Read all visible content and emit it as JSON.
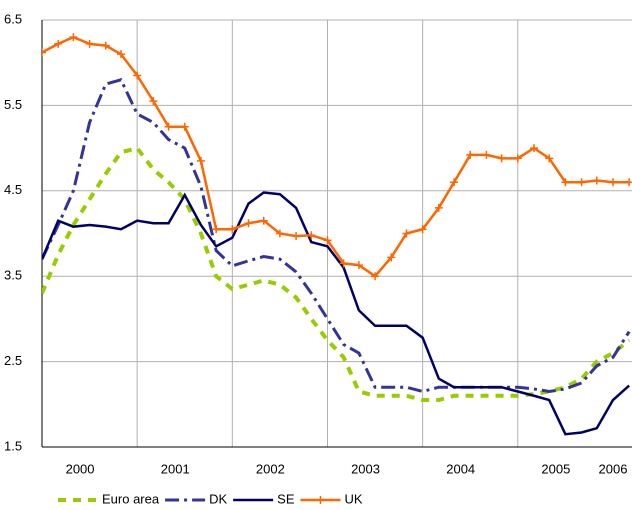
{
  "chart_data": {
    "type": "line",
    "x": [
      2000,
      2000.17,
      2000.33,
      2000.5,
      2000.67,
      2000.83,
      2001,
      2001.17,
      2001.33,
      2001.5,
      2001.67,
      2001.83,
      2002,
      2002.17,
      2002.33,
      2002.5,
      2002.67,
      2002.83,
      2003,
      2003.17,
      2003.33,
      2003.5,
      2003.67,
      2003.83,
      2004,
      2004.17,
      2004.33,
      2004.5,
      2004.67,
      2004.83,
      2005,
      2005.17,
      2005.33,
      2005.5,
      2005.67,
      2005.83,
      2006,
      2006.17
    ],
    "series": [
      {
        "name": "Euro area",
        "color": "#99cc00",
        "dash": "8 7",
        "width": 4,
        "values": [
          3.3,
          3.75,
          4.1,
          4.4,
          4.7,
          4.95,
          5.0,
          4.75,
          4.6,
          4.4,
          4.0,
          3.5,
          3.35,
          3.4,
          3.45,
          3.4,
          3.25,
          3.0,
          2.75,
          2.55,
          2.15,
          2.1,
          2.1,
          2.1,
          2.05,
          2.05,
          2.1,
          2.1,
          2.1,
          2.1,
          2.1,
          2.12,
          2.15,
          2.2,
          2.3,
          2.5,
          2.6,
          2.75
        ]
      },
      {
        "name": "DK",
        "color": "#333399",
        "dash": "14 5 3 5",
        "width": 3,
        "values": [
          3.7,
          4.1,
          4.5,
          5.3,
          5.75,
          5.8,
          5.4,
          5.3,
          5.1,
          5.0,
          4.55,
          3.8,
          3.62,
          3.68,
          3.73,
          3.7,
          3.55,
          3.3,
          3.0,
          2.7,
          2.6,
          2.2,
          2.2,
          2.2,
          2.15,
          2.2,
          2.2,
          2.2,
          2.2,
          2.2,
          2.2,
          2.18,
          2.15,
          2.18,
          2.25,
          2.45,
          2.55,
          2.85
        ]
      },
      {
        "name": "SE",
        "color": "#000066",
        "width": 2.5,
        "values": [
          3.7,
          4.15,
          4.08,
          4.1,
          4.08,
          4.05,
          4.15,
          4.12,
          4.12,
          4.45,
          4.1,
          3.85,
          3.95,
          4.35,
          4.48,
          4.46,
          4.3,
          3.9,
          3.85,
          3.6,
          3.1,
          2.92,
          2.92,
          2.92,
          2.78,
          2.3,
          2.2,
          2.2,
          2.2,
          2.2,
          2.15,
          2.1,
          2.05,
          1.65,
          1.67,
          1.72,
          2.05,
          2.22
        ]
      },
      {
        "name": "UK",
        "color": "#ff6600",
        "width": 2.5,
        "marker": "plus",
        "values": [
          6.12,
          6.22,
          6.3,
          6.22,
          6.2,
          6.1,
          5.85,
          5.55,
          5.25,
          5.25,
          4.85,
          4.05,
          4.05,
          4.12,
          4.15,
          4.0,
          3.97,
          3.98,
          3.92,
          3.65,
          3.63,
          3.5,
          3.72,
          4.0,
          4.05,
          4.3,
          4.6,
          4.92,
          4.92,
          4.88,
          4.88,
          5.0,
          4.88,
          4.6,
          4.6,
          4.62,
          4.6,
          4.6
        ]
      }
    ],
    "xlim": [
      2000,
      2006.2
    ],
    "xticks": [
      {
        "value": 2000.4,
        "label": "2000"
      },
      {
        "value": 2001.4,
        "label": "2001"
      },
      {
        "value": 2002.4,
        "label": "2002"
      },
      {
        "value": 2003.4,
        "label": "2003"
      },
      {
        "value": 2004.4,
        "label": "2004"
      },
      {
        "value": 2005.4,
        "label": "2005"
      },
      {
        "value": 2006.0,
        "label": "2006"
      }
    ],
    "xgrid": [
      2001,
      2002,
      2003,
      2004,
      2005
    ],
    "ylim": [
      1.5,
      6.5
    ],
    "yticks": [
      1.5,
      2.5,
      3.5,
      4.5,
      5.5,
      6.5
    ],
    "grid": true,
    "legend": "bottom"
  }
}
